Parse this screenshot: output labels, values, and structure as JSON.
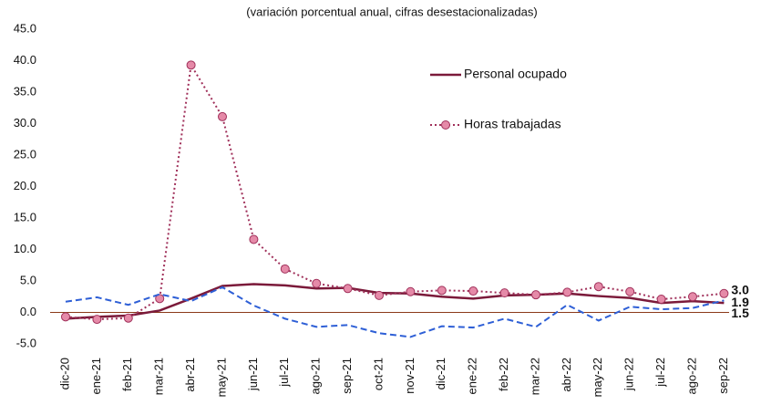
{
  "chart_data": {
    "type": "line",
    "subtitle": "(variación porcentual anual, cifras desestacionalizadas)",
    "categories": [
      "dic-20",
      "ene-21",
      "feb-21",
      "mar-21",
      "abr-21",
      "may-21",
      "jun-21",
      "jul-21",
      "ago-21",
      "sep-21",
      "oct-21",
      "nov-21",
      "dic-21",
      "ene-22",
      "feb-22",
      "mar-22",
      "abr-22",
      "may-22",
      "jun-22",
      "jul-22",
      "ago-22",
      "sep-22"
    ],
    "ylim": [
      -5,
      45
    ],
    "yticks": [
      {
        "value": -5,
        "label": "-5.0"
      },
      {
        "value": 0,
        "label": "0.0"
      },
      {
        "value": 5,
        "label": "5.0"
      },
      {
        "value": 10,
        "label": "10.0"
      },
      {
        "value": 15,
        "label": "15.0"
      },
      {
        "value": 20,
        "label": "20.0"
      },
      {
        "value": 25,
        "label": "25.0"
      },
      {
        "value": 30,
        "label": "30.0"
      },
      {
        "value": 35,
        "label": "35.0"
      },
      {
        "value": 40,
        "label": "40.0"
      },
      {
        "value": 45,
        "label": "45.0"
      }
    ],
    "zero_line_color": "#8b3a1a",
    "legend": "upper right",
    "series": [
      {
        "name": "Personal ocupado",
        "color": "#7b1a3a",
        "style": "solid",
        "marker": false,
        "label_color": "#7b1a3a",
        "values": [
          -1.0,
          -0.7,
          -0.5,
          0.3,
          2.2,
          4.2,
          4.5,
          4.3,
          3.8,
          3.9,
          3.1,
          3.0,
          2.5,
          2.2,
          2.7,
          2.8,
          3.0,
          2.6,
          2.3,
          1.5,
          1.8,
          1.5
        ],
        "value_labels": [
          null,
          null,
          null,
          null,
          null,
          null,
          null,
          null,
          null,
          null,
          null,
          null,
          null,
          null,
          null,
          null,
          null,
          null,
          null,
          null,
          null,
          "1.5"
        ]
      },
      {
        "name": "Horas trabajadas",
        "color": "#a0305a",
        "style": "dotted",
        "marker": true,
        "marker_color": "#e58aa8",
        "label_color": "#e0337a",
        "values": [
          -0.7,
          -1.1,
          -0.9,
          2.2,
          39.3,
          31.1,
          11.6,
          6.9,
          4.6,
          3.8,
          2.7,
          3.3,
          3.5,
          3.4,
          3.1,
          2.8,
          3.2,
          4.1,
          3.3,
          2.1,
          2.5,
          3.0
        ],
        "value_labels": [
          null,
          null,
          null,
          null,
          null,
          null,
          null,
          null,
          null,
          null,
          null,
          null,
          null,
          null,
          null,
          null,
          null,
          null,
          null,
          null,
          null,
          "3.0"
        ]
      },
      {
        "color": "#2e5fd6",
        "style": "dashed",
        "marker": false,
        "label_color": "#2a8fc9",
        "values": [
          1.7,
          2.4,
          1.2,
          2.9,
          1.8,
          4.0,
          1.1,
          -1.0,
          -2.3,
          -2.0,
          -3.3,
          -3.9,
          -2.2,
          -2.4,
          -1.0,
          -2.3,
          1.2,
          -1.3,
          0.9,
          0.5,
          0.7,
          1.9
        ],
        "value_labels": [
          null,
          null,
          null,
          null,
          null,
          null,
          null,
          null,
          null,
          null,
          null,
          null,
          null,
          null,
          null,
          null,
          null,
          null,
          null,
          null,
          null,
          "1.9"
        ]
      }
    ]
  }
}
